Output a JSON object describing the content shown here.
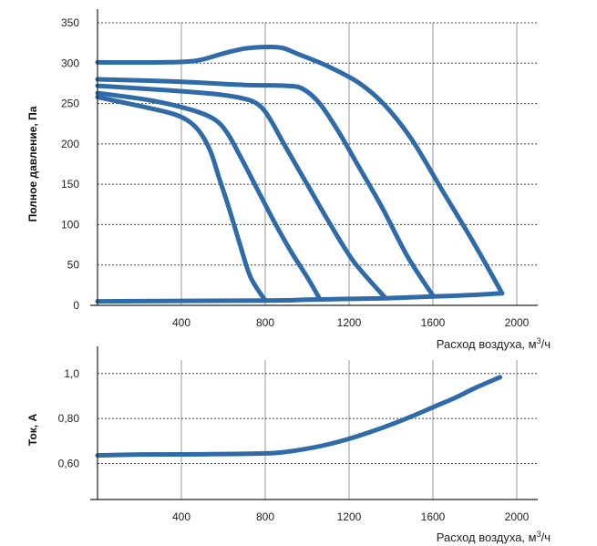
{
  "colors": {
    "curve": "#2f6aa9"
  },
  "chart_data": [
    {
      "type": "line",
      "ylabel": "Полное давление, Па",
      "xlabel_prefix": "Расход воздуха, м",
      "xlabel_sup": "3",
      "xlabel_suffix": "/ч",
      "xlim": [
        0,
        2100
      ],
      "ylim": [
        0,
        350
      ],
      "xticks": [
        400,
        800,
        1200,
        1600,
        2000
      ],
      "xtick_labels": [
        "400",
        "800",
        "1200",
        "1600",
        "2000"
      ],
      "yticks": [
        0,
        50,
        100,
        150,
        200,
        250,
        300,
        350
      ],
      "ytick_labels": [
        "0",
        "50",
        "100",
        "150",
        "200",
        "250",
        "300",
        "350"
      ],
      "grid": true,
      "series": [
        {
          "points": [
            [
              0,
              301
            ],
            [
              300,
              301
            ],
            [
              470,
              303
            ],
            [
              600,
              312
            ],
            [
              700,
              318
            ],
            [
              800,
              320
            ],
            [
              880,
              319
            ],
            [
              950,
              312
            ],
            [
              1100,
              296
            ],
            [
              1250,
              275
            ],
            [
              1370,
              248
            ],
            [
              1500,
              205
            ],
            [
              1650,
              140
            ],
            [
              1800,
              75
            ],
            [
              1930,
              15
            ]
          ]
        },
        {
          "points": [
            [
              0,
              280
            ],
            [
              400,
              277
            ],
            [
              700,
              273
            ],
            [
              900,
              272
            ],
            [
              980,
              268
            ],
            [
              1060,
              250
            ],
            [
              1150,
              215
            ],
            [
              1250,
              170
            ],
            [
              1360,
              120
            ],
            [
              1480,
              60
            ],
            [
              1600,
              12
            ]
          ]
        },
        {
          "points": [
            [
              0,
              272
            ],
            [
              300,
              267
            ],
            [
              550,
              262
            ],
            [
              700,
              256
            ],
            [
              770,
              248
            ],
            [
              820,
              232
            ],
            [
              900,
              195
            ],
            [
              1000,
              150
            ],
            [
              1100,
              105
            ],
            [
              1220,
              55
            ],
            [
              1370,
              10
            ]
          ]
        },
        {
          "points": [
            [
              0,
              263
            ],
            [
              250,
              254
            ],
            [
              450,
              242
            ],
            [
              560,
              230
            ],
            [
              620,
              213
            ],
            [
              680,
              185
            ],
            [
              760,
              145
            ],
            [
              840,
              105
            ],
            [
              920,
              68
            ],
            [
              1000,
              35
            ],
            [
              1060,
              8
            ]
          ]
        },
        {
          "points": [
            [
              0,
              258
            ],
            [
              200,
              247
            ],
            [
              350,
              238
            ],
            [
              430,
              229
            ],
            [
              490,
              214
            ],
            [
              540,
              190
            ],
            [
              580,
              158
            ],
            [
              630,
              118
            ],
            [
              680,
              75
            ],
            [
              730,
              35
            ],
            [
              800,
              6
            ]
          ]
        },
        {
          "points": [
            [
              0,
              5
            ],
            [
              800,
              6
            ],
            [
              1000,
              7
            ],
            [
              1200,
              8
            ],
            [
              1400,
              9
            ],
            [
              1600,
              11
            ],
            [
              1800,
              13
            ],
            [
              1930,
              15
            ]
          ]
        }
      ]
    },
    {
      "type": "line",
      "ylabel": "Ток, А",
      "xlabel_prefix": "Расход воздуха, м",
      "xlabel_sup": "3",
      "xlabel_suffix": "/ч",
      "xlim": [
        0,
        2100
      ],
      "ylim": [
        0.44,
        1.06
      ],
      "xticks": [
        400,
        800,
        1200,
        1600,
        2000
      ],
      "xtick_labels": [
        "400",
        "800",
        "1200",
        "1600",
        "2000"
      ],
      "yticks": [
        0.6,
        0.8,
        1.0
      ],
      "ytick_labels": [
        "0,60",
        "0,80",
        "1,0"
      ],
      "grid": true,
      "series": [
        {
          "points": [
            [
              0,
              0.636
            ],
            [
              200,
              0.64
            ],
            [
              500,
              0.641
            ],
            [
              800,
              0.645
            ],
            [
              900,
              0.652
            ],
            [
              1000,
              0.666
            ],
            [
              1100,
              0.685
            ],
            [
              1200,
              0.71
            ],
            [
              1300,
              0.74
            ],
            [
              1400,
              0.773
            ],
            [
              1500,
              0.81
            ],
            [
              1600,
              0.85
            ],
            [
              1700,
              0.89
            ],
            [
              1800,
              0.935
            ],
            [
              1920,
              0.984
            ]
          ]
        }
      ]
    }
  ]
}
